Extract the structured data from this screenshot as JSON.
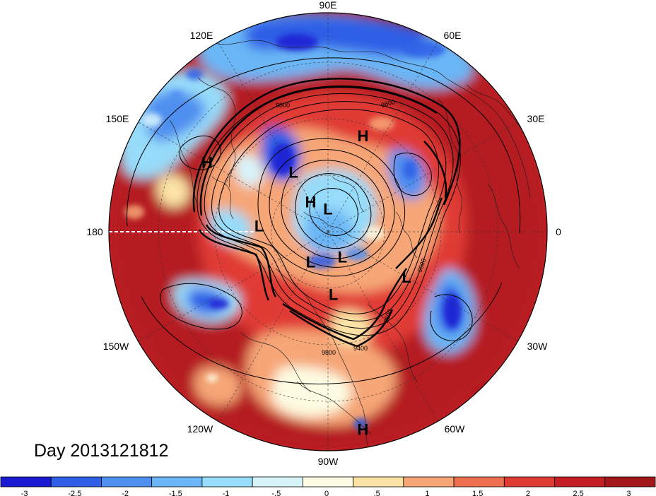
{
  "map": {
    "projection": "north-polar-stereographic",
    "fill_variable_scale": [
      -3,
      -2.5,
      -2,
      -1.5,
      -1,
      -0.5,
      0,
      0.5,
      1,
      1.5,
      2,
      2.5,
      3
    ],
    "longitude_labels": [
      "90E",
      "60E",
      "30E",
      "0",
      "30W",
      "60W",
      "90W",
      "120W",
      "150W",
      "180",
      "150E",
      "120E"
    ],
    "pressure_centers": [
      {
        "label": "H",
        "lon": 70,
        "lat": 40
      },
      {
        "label": "H",
        "lon": 150,
        "lat": 25
      },
      {
        "label": "L",
        "lon": 120,
        "lat": 55
      },
      {
        "label": "H",
        "lon": 120,
        "lat": 72
      },
      {
        "label": "L",
        "lon": 90,
        "lat": 78
      },
      {
        "label": "L",
        "lon": 175,
        "lat": 55
      },
      {
        "label": "L",
        "lon": -120,
        "lat": 72
      },
      {
        "label": "L",
        "lon": -60,
        "lat": 75
      },
      {
        "label": "L",
        "lon": -30,
        "lat": 45
      },
      {
        "label": "L",
        "lon": -85,
        "lat": 58
      },
      {
        "label": "H",
        "lon": -80,
        "lat": 5
      }
    ],
    "contour_labels": [
      "9600",
      "9600",
      "9600",
      "9400",
      "9800",
      "9800"
    ]
  },
  "title": {
    "day_label": "Day 2013121812"
  },
  "colorbar": {
    "colors": [
      "#1a1ad2",
      "#2e5fe6",
      "#4f8ff0",
      "#6ab6f6",
      "#97dcfa",
      "#d8f4fb",
      "#fdfbe2",
      "#fbe3a6",
      "#f6a677",
      "#ef7050",
      "#e03a35",
      "#c41e24",
      "#a3161c"
    ],
    "tick_labels": [
      "-3",
      "-2.5",
      "-2",
      "-1.5",
      "-1",
      "-.5",
      "0",
      ".5",
      "1",
      "1.5",
      "2",
      "2.5",
      "3"
    ]
  }
}
